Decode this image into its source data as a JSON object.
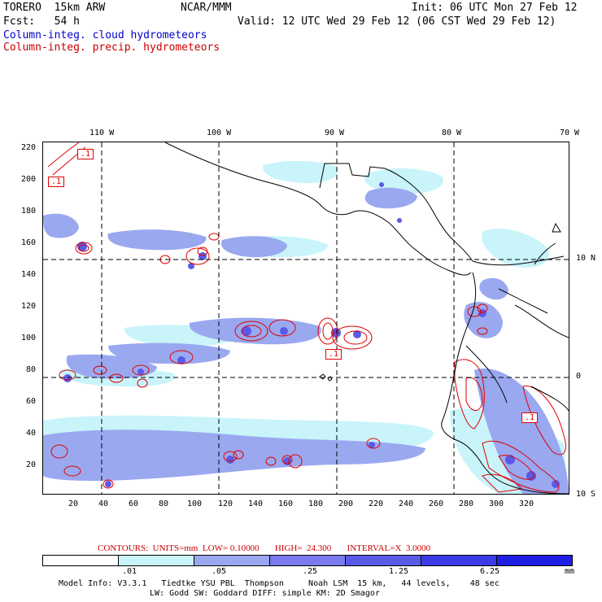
{
  "header": {
    "model": "TORERO  15km ARW",
    "org": "NCAR/MMM",
    "init": "Init: 06 UTC Mon 27 Feb 12",
    "fcst": "Fcst:   54 h",
    "valid": "Valid: 12 UTC Wed 29 Feb 12 (06 CST Wed 29 Feb 12)",
    "field_cloud": "Column-integ. cloud hydrometeors",
    "field_precip": "Column-integ. precip. hydrometeors"
  },
  "map": {
    "lon_labels": [
      "110 W",
      "100 W",
      "90 W",
      "80 W",
      "70 W"
    ],
    "lat_labels": [
      "10 N",
      "0",
      "10 S"
    ],
    "y_ticks": [
      "220",
      "200",
      "180",
      "160",
      "140",
      "120",
      "100",
      "80",
      "60",
      "40",
      "20"
    ],
    "x_ticks": [
      "20",
      "40",
      "60",
      "80",
      "100",
      "120",
      "140",
      "160",
      "180",
      "200",
      "220",
      "240",
      "260",
      "280",
      "300",
      "320"
    ],
    "contour_labels": [
      ".1",
      ".1",
      ".1",
      ".1"
    ],
    "colors": {
      "cloud_light": "#c8f4fa",
      "cloud_mid": "#9aa8f0",
      "cloud_dark": "#5a5ae8",
      "precip_contour": "#e00000",
      "coast": "#000000"
    }
  },
  "caption": {
    "contours": "CONTOURS:  UNITS=mm  LOW= 0.10000       HIGH=  24.300       INTERVAL=X  3.0000"
  },
  "legend": {
    "colors": [
      "#ffffff",
      "#c8f4fa",
      "#9aa8f0",
      "#7a7aee",
      "#5a5ae8",
      "#3c3ce6",
      "#1e1ee4"
    ],
    "labels": [
      ".01",
      ".05",
      ".25",
      "1.25",
      "6.25"
    ],
    "unit": "mm"
  },
  "footer": {
    "line1": "Model Info: V3.3.1   Tiedtke YSU PBL  Thompson     Noah LSM  15 km,   44 levels,    48 sec",
    "line2": "LW: Godd SW: Goddard DIFF: simple KM: 2D Smagor"
  }
}
